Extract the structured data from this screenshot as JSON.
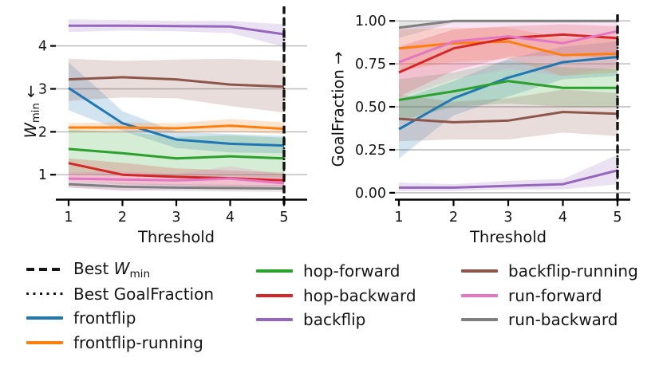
{
  "palette": {
    "grid": "#b9b9b9",
    "axis": "#000000",
    "text": "#151515",
    "best_line": "#111111",
    "band_opacity": 0.2
  },
  "chart_data": [
    {
      "type": "line",
      "side": "left",
      "title": "",
      "xlabel": "Threshold",
      "ylabel_parts": [
        {
          "t": "W",
          "style": "italic"
        },
        {
          "t": "min",
          "style": "sub"
        },
        {
          "t": " ←",
          "style": "normal"
        }
      ],
      "x": [
        1,
        2,
        3,
        4,
        5
      ],
      "xtick_labels": [
        "1",
        "2",
        "3",
        "4",
        "5"
      ],
      "yticks": [
        1,
        2,
        3,
        4
      ],
      "ytick_labels": [
        "1",
        "2",
        "3",
        "4"
      ],
      "ylim": [
        0.42,
        4.92
      ],
      "grid": true,
      "vlines": [
        {
          "label": "Best GoalFraction",
          "style": "dotted",
          "x": 5
        },
        {
          "label": "Best W_min",
          "style": "dashed",
          "x": 5
        }
      ],
      "series": [
        {
          "name": "frontflip",
          "color": "#1f77b4",
          "values": [
            3.02,
            2.2,
            1.82,
            1.72,
            1.68
          ],
          "lo": [
            2.5,
            2.02,
            1.62,
            1.52,
            1.5
          ],
          "hi": [
            3.62,
            2.48,
            2.0,
            1.95,
            1.9
          ]
        },
        {
          "name": "frontflip-running",
          "color": "#ff7f0e",
          "values": [
            2.1,
            2.1,
            2.08,
            2.14,
            2.07
          ],
          "lo": [
            2.0,
            2.0,
            1.97,
            2.0,
            1.95
          ],
          "hi": [
            2.2,
            2.22,
            2.2,
            2.3,
            2.22
          ]
        },
        {
          "name": "hop-forward",
          "color": "#2ca02c",
          "values": [
            1.6,
            1.5,
            1.38,
            1.43,
            1.38
          ],
          "lo": [
            1.02,
            0.98,
            0.92,
            0.96,
            0.92
          ],
          "hi": [
            2.05,
            2.0,
            1.88,
            1.92,
            1.86
          ]
        },
        {
          "name": "hop-backward",
          "color": "#d62728",
          "values": [
            1.27,
            1.0,
            0.95,
            0.92,
            0.87
          ],
          "lo": [
            0.86,
            0.78,
            0.75,
            0.72,
            0.72
          ],
          "hi": [
            1.38,
            1.28,
            1.15,
            1.1,
            1.05
          ]
        },
        {
          "name": "backflip",
          "color": "#9467bd",
          "values": [
            4.47,
            4.47,
            4.46,
            4.45,
            4.27
          ],
          "lo": [
            4.32,
            4.36,
            4.34,
            4.3,
            3.98
          ],
          "hi": [
            4.62,
            4.6,
            4.58,
            4.58,
            4.5
          ]
        },
        {
          "name": "backflip-running",
          "color": "#8c564b",
          "values": [
            3.22,
            3.27,
            3.22,
            3.1,
            3.05
          ],
          "lo": [
            2.72,
            2.8,
            2.78,
            2.6,
            2.45
          ],
          "hi": [
            3.7,
            3.65,
            3.68,
            3.7,
            3.65
          ]
        },
        {
          "name": "run-forward",
          "color": "#e377c2",
          "values": [
            0.91,
            0.89,
            0.87,
            0.91,
            0.8
          ],
          "lo": [
            0.7,
            0.62,
            0.66,
            0.65,
            0.66
          ],
          "hi": [
            1.05,
            1.08,
            1.02,
            1.2,
            1.0
          ]
        },
        {
          "name": "run-backward",
          "color": "#7f7f7f",
          "values": [
            0.78,
            0.72,
            0.7,
            0.69,
            0.68
          ],
          "lo": [
            0.7,
            0.64,
            0.62,
            0.61,
            0.6
          ],
          "hi": [
            0.85,
            0.8,
            0.78,
            0.77,
            0.76
          ]
        }
      ]
    },
    {
      "type": "line",
      "side": "right",
      "title": "",
      "xlabel": "Threshold",
      "ylabel_parts": [
        {
          "t": "GoalFraction →",
          "style": "normal"
        }
      ],
      "x": [
        1,
        2,
        3,
        4,
        5
      ],
      "xtick_labels": [
        "1",
        "2",
        "3",
        "4",
        "5"
      ],
      "yticks": [
        0,
        0.25,
        0.5,
        0.75,
        1
      ],
      "ytick_labels": [
        "0.00",
        "0.25",
        "0.50",
        "0.75",
        "1.00"
      ],
      "ylim": [
        -0.04,
        1.038
      ],
      "grid": true,
      "vlines": [
        {
          "label": "Best GoalFraction",
          "style": "dotted",
          "x": 5
        },
        {
          "label": "Best W_min",
          "style": "dashed",
          "x": 5
        }
      ],
      "series": [
        {
          "name": "frontflip",
          "color": "#1f77b4",
          "values": [
            0.37,
            0.55,
            0.67,
            0.76,
            0.79
          ],
          "lo": [
            0.2,
            0.45,
            0.56,
            0.66,
            0.68
          ],
          "hi": [
            0.54,
            0.65,
            0.78,
            0.85,
            0.88
          ]
        },
        {
          "name": "frontflip-running",
          "color": "#ff7f0e",
          "values": [
            0.84,
            0.87,
            0.88,
            0.8,
            0.81
          ],
          "lo": [
            0.71,
            0.76,
            0.78,
            0.68,
            0.7
          ],
          "hi": [
            0.95,
            0.96,
            0.96,
            0.9,
            0.9
          ]
        },
        {
          "name": "hop-forward",
          "color": "#2ca02c",
          "values": [
            0.54,
            0.59,
            0.65,
            0.61,
            0.61
          ],
          "lo": [
            0.42,
            0.5,
            0.52,
            0.5,
            0.5
          ],
          "hi": [
            0.66,
            0.7,
            0.77,
            0.73,
            0.72
          ]
        },
        {
          "name": "hop-backward",
          "color": "#d62728",
          "values": [
            0.7,
            0.84,
            0.9,
            0.92,
            0.9
          ],
          "lo": [
            0.56,
            0.71,
            0.79,
            0.8,
            0.78
          ],
          "hi": [
            0.85,
            0.95,
            0.97,
            0.98,
            0.97
          ]
        },
        {
          "name": "backflip",
          "color": "#9467bd",
          "values": [
            0.03,
            0.03,
            0.04,
            0.05,
            0.13
          ],
          "lo": [
            0.01,
            0.01,
            0.02,
            0.02,
            0.05
          ],
          "hi": [
            0.06,
            0.05,
            0.07,
            0.08,
            0.22
          ]
        },
        {
          "name": "backflip-running",
          "color": "#8c564b",
          "values": [
            0.43,
            0.41,
            0.42,
            0.47,
            0.46
          ],
          "lo": [
            0.3,
            0.31,
            0.31,
            0.35,
            0.33
          ],
          "hi": [
            0.57,
            0.53,
            0.55,
            0.6,
            0.58
          ]
        },
        {
          "name": "run-forward",
          "color": "#e377c2",
          "values": [
            0.76,
            0.88,
            0.91,
            0.87,
            0.94
          ],
          "lo": [
            0.55,
            0.66,
            0.72,
            0.68,
            0.73
          ],
          "hi": [
            0.97,
            1.0,
            1.0,
            1.0,
            1.0
          ]
        },
        {
          "name": "run-backward",
          "color": "#7f7f7f",
          "values": [
            0.96,
            1.0,
            1.0,
            1.0,
            1.0
          ],
          "lo": [
            0.9,
            0.99,
            0.99,
            0.99,
            0.99
          ],
          "hi": [
            1.0,
            1.0,
            1.0,
            1.0,
            1.0
          ]
        }
      ]
    }
  ],
  "legend": {
    "columns": [
      [
        {
          "sample": "dashed",
          "color": "#151515",
          "parts": [
            {
              "t": "Best ",
              "style": "normal"
            },
            {
              "t": "W",
              "style": "italic"
            },
            {
              "t": "min",
              "style": "sub"
            }
          ]
        },
        {
          "sample": "dotted",
          "color": "#151515",
          "parts": [
            {
              "t": "Best GoalFraction",
              "style": "normal"
            }
          ]
        },
        {
          "sample": "solid",
          "color": "#1f77b4",
          "parts": [
            {
              "t": "frontflip",
              "style": "normal"
            }
          ]
        },
        {
          "sample": "solid",
          "color": "#ff7f0e",
          "parts": [
            {
              "t": "frontflip-running",
              "style": "normal"
            }
          ]
        }
      ],
      [
        {
          "sample": "solid",
          "color": "#2ca02c",
          "parts": [
            {
              "t": "hop-forward",
              "style": "normal"
            }
          ]
        },
        {
          "sample": "solid",
          "color": "#d62728",
          "parts": [
            {
              "t": "hop-backward",
              "style": "normal"
            }
          ]
        },
        {
          "sample": "solid",
          "color": "#9467bd",
          "parts": [
            {
              "t": "backflip",
              "style": "normal"
            }
          ]
        }
      ],
      [
        {
          "sample": "solid",
          "color": "#8c564b",
          "parts": [
            {
              "t": "backflip-running",
              "style": "normal"
            }
          ]
        },
        {
          "sample": "solid",
          "color": "#e377c2",
          "parts": [
            {
              "t": "run-forward",
              "style": "normal"
            }
          ]
        },
        {
          "sample": "solid",
          "color": "#7f7f7f",
          "parts": [
            {
              "t": "run-backward",
              "style": "normal"
            }
          ]
        }
      ]
    ]
  }
}
